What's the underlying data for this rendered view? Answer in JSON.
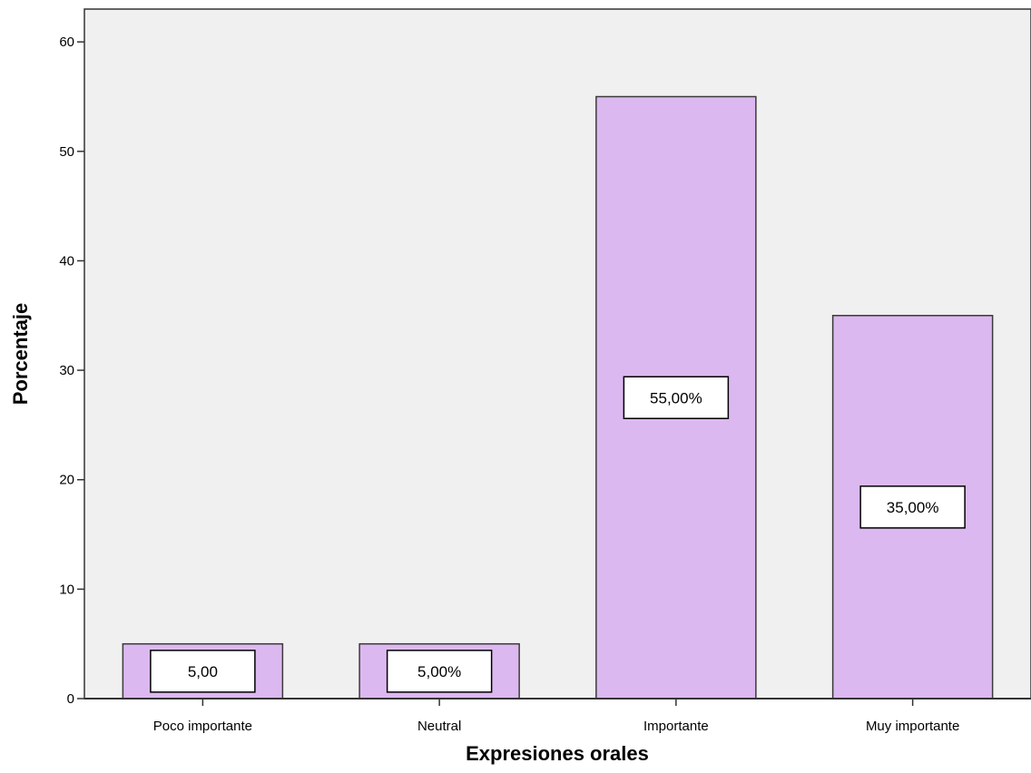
{
  "chart_data": {
    "type": "bar",
    "categories": [
      "Poco importante",
      "Neutral",
      "Importante",
      "Muy importante"
    ],
    "values": [
      5,
      5,
      55,
      35
    ],
    "data_labels": [
      "5,00",
      "5,00%",
      "55,00%",
      "35,00%"
    ],
    "xlabel": "Expresiones orales",
    "ylabel": "Porcentaje",
    "ylim": [
      0,
      63
    ],
    "yticks": [
      0,
      10,
      20,
      30,
      40,
      50,
      60
    ],
    "grid": false,
    "colors": {
      "bar_fill": "#dcb8f0",
      "bar_stroke": "#3a3a3a",
      "plot_background": "#f0f0f0",
      "label_box_fill": "#ffffff"
    }
  }
}
